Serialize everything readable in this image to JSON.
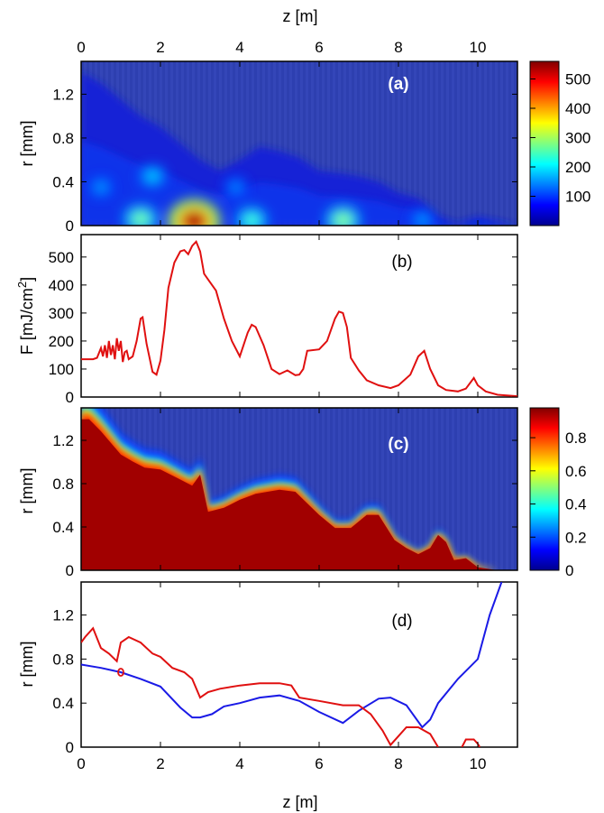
{
  "figure": {
    "top_xlabel": "z [m]",
    "bottom_xlabel": "z [m]"
  },
  "chart_data": [
    {
      "id": "a",
      "type": "heatmap",
      "panel_label": "(a)",
      "ylabel": "r [mm]",
      "xlim": [
        0,
        11
      ],
      "ylim": [
        0,
        1.5
      ],
      "xticks": [
        "0",
        "2",
        "4",
        "6",
        "8",
        "10"
      ],
      "yticks": [
        "0",
        "0.4",
        "0.8",
        "1.2"
      ],
      "colorbar": {
        "ticks": [
          "100",
          "200",
          "300",
          "400",
          "500"
        ],
        "range": [
          0,
          560
        ]
      },
      "colormap": "jet",
      "envelope_r": [
        [
          0,
          1.4
        ],
        [
          0.5,
          1.3
        ],
        [
          1,
          1.15
        ],
        [
          1.5,
          1.0
        ],
        [
          2,
          0.9
        ],
        [
          2.5,
          0.75
        ],
        [
          3,
          0.6
        ],
        [
          3.5,
          0.5
        ],
        [
          4,
          0.6
        ],
        [
          4.5,
          0.72
        ],
        [
          5,
          0.68
        ],
        [
          5.5,
          0.62
        ],
        [
          6,
          0.5
        ],
        [
          6.5,
          0.48
        ],
        [
          7,
          0.45
        ],
        [
          7.5,
          0.4
        ],
        [
          8,
          0.3
        ],
        [
          8.5,
          0.25
        ],
        [
          9,
          0.08
        ],
        [
          9.5,
          0.02
        ],
        [
          10,
          0.08
        ],
        [
          10.5,
          0.04
        ],
        [
          11,
          0
        ]
      ],
      "hotspots": [
        {
          "z": 2.85,
          "r": 0.04,
          "F": 560
        },
        {
          "z": 1.5,
          "r": 0.06,
          "F": 290
        },
        {
          "z": 4.3,
          "r": 0.05,
          "F": 260
        },
        {
          "z": 6.6,
          "r": 0.05,
          "F": 300
        },
        {
          "z": 8.6,
          "r": 0.05,
          "F": 170
        },
        {
          "z": 1.8,
          "r": 0.45,
          "F": 200
        },
        {
          "z": 0.5,
          "r": 0.35,
          "F": 170
        },
        {
          "z": 3.9,
          "r": 0.35,
          "F": 160
        }
      ]
    },
    {
      "id": "b",
      "type": "line",
      "panel_label": "(b)",
      "ylabel": "F [mJ/cm",
      "ylabel_sup": "2",
      "ylabel_end": "]",
      "xlim": [
        0,
        11
      ],
      "ylim": [
        0,
        580
      ],
      "yticks": [
        "0",
        "100",
        "200",
        "300",
        "400",
        "500"
      ],
      "series": [
        {
          "color": "#e01010",
          "x": [
            0,
            0.3,
            0.4,
            0.5,
            0.55,
            0.6,
            0.65,
            0.7,
            0.75,
            0.8,
            0.85,
            0.9,
            0.95,
            1.0,
            1.05,
            1.1,
            1.15,
            1.2,
            1.3,
            1.4,
            1.5,
            1.55,
            1.65,
            1.8,
            1.9,
            2.0,
            2.1,
            2.2,
            2.35,
            2.5,
            2.6,
            2.7,
            2.8,
            2.9,
            3.0,
            3.1,
            3.2,
            3.4,
            3.6,
            3.8,
            4.0,
            4.2,
            4.3,
            4.4,
            4.6,
            4.8,
            5.0,
            5.2,
            5.4,
            5.5,
            5.6,
            5.7,
            6.0,
            6.2,
            6.4,
            6.5,
            6.6,
            6.7,
            6.8,
            7.0,
            7.2,
            7.5,
            7.8,
            8.0,
            8.3,
            8.5,
            8.65,
            8.8,
            9.0,
            9.2,
            9.5,
            9.7,
            9.9,
            10.0,
            10.2,
            10.5,
            11.0
          ],
          "y": [
            135,
            135,
            140,
            175,
            145,
            185,
            140,
            200,
            150,
            185,
            135,
            210,
            165,
            200,
            125,
            160,
            165,
            135,
            145,
            200,
            280,
            285,
            190,
            90,
            80,
            130,
            240,
            390,
            480,
            520,
            525,
            510,
            540,
            555,
            520,
            440,
            420,
            380,
            280,
            200,
            145,
            230,
            258,
            250,
            185,
            100,
            82,
            95,
            78,
            80,
            100,
            165,
            170,
            200,
            280,
            305,
            300,
            250,
            140,
            95,
            60,
            42,
            32,
            42,
            80,
            145,
            165,
            100,
            42,
            25,
            20,
            30,
            68,
            42,
            20,
            8,
            3
          ]
        }
      ]
    },
    {
      "id": "c",
      "type": "heatmap",
      "panel_label": "(c)",
      "ylabel": "r [mm]",
      "xlim": [
        0,
        11
      ],
      "ylim": [
        0,
        1.5
      ],
      "yticks": [
        "0",
        "0.4",
        "0.8",
        "1.2"
      ],
      "colorbar": {
        "ticks": [
          "0",
          "0.2",
          "0.4",
          "0.6",
          "0.8"
        ],
        "range": [
          0,
          0.98
        ]
      },
      "colormap": "jet",
      "boundary_r": [
        [
          0,
          1.5
        ],
        [
          0.2,
          1.5
        ],
        [
          0.5,
          1.38
        ],
        [
          1,
          1.15
        ],
        [
          1.3,
          1.08
        ],
        [
          1.6,
          1.02
        ],
        [
          2,
          1.0
        ],
        [
          2.4,
          0.92
        ],
        [
          2.8,
          0.84
        ],
        [
          3,
          0.95
        ],
        [
          3.2,
          0.58
        ],
        [
          3.6,
          0.62
        ],
        [
          4,
          0.7
        ],
        [
          4.4,
          0.76
        ],
        [
          5,
          0.8
        ],
        [
          5.4,
          0.78
        ],
        [
          6,
          0.55
        ],
        [
          6.4,
          0.42
        ],
        [
          6.8,
          0.42
        ],
        [
          7.2,
          0.55
        ],
        [
          7.5,
          0.55
        ],
        [
          7.9,
          0.3
        ],
        [
          8.2,
          0.22
        ],
        [
          8.5,
          0.16
        ],
        [
          8.8,
          0.22
        ],
        [
          9,
          0.35
        ],
        [
          9.2,
          0.28
        ],
        [
          9.4,
          0.1
        ],
        [
          9.7,
          0.12
        ],
        [
          10.0,
          0.03
        ],
        [
          10.5,
          0
        ],
        [
          11,
          0
        ]
      ]
    },
    {
      "id": "d",
      "type": "line",
      "panel_label": "(d)",
      "ylabel": "r [mm]",
      "xlim": [
        0,
        11
      ],
      "ylim": [
        0,
        1.5
      ],
      "xticks": [
        "0",
        "2",
        "4",
        "6",
        "8",
        "10"
      ],
      "yticks": [
        "0",
        "0.4",
        "0.8",
        "1.2"
      ],
      "series": [
        {
          "color": "#1a1ae6",
          "x": [
            0,
            0.5,
            1.0,
            1.5,
            2.0,
            2.5,
            2.8,
            3.0,
            3.3,
            3.6,
            4.0,
            4.5,
            5.0,
            5.5,
            6.0,
            6.6,
            7.0,
            7.5,
            7.8,
            8.2,
            8.6,
            8.8,
            9.0,
            9.5,
            10.0,
            10.3,
            10.6
          ],
          "y": [
            0.75,
            0.72,
            0.68,
            0.62,
            0.55,
            0.36,
            0.27,
            0.27,
            0.3,
            0.37,
            0.4,
            0.45,
            0.47,
            0.42,
            0.32,
            0.22,
            0.33,
            0.44,
            0.45,
            0.38,
            0.18,
            0.25,
            0.4,
            0.62,
            0.8,
            1.2,
            1.5
          ]
        },
        {
          "color": "#e01010",
          "x": [
            0,
            0.1,
            0.3,
            0.5,
            0.7,
            0.9,
            1.0,
            1.2,
            1.5,
            1.8,
            2.0,
            2.3,
            2.6,
            2.8,
            3.0,
            3.2,
            3.5,
            4.0,
            4.5,
            5.0,
            5.3,
            5.5,
            6.0,
            6.6,
            7.0,
            7.3,
            7.6,
            7.8,
            8.0,
            8.2,
            8.5,
            8.8,
            9.0
          ],
          "y": [
            0.95,
            1.0,
            1.08,
            0.9,
            0.85,
            0.78,
            0.95,
            1.0,
            0.95,
            0.85,
            0.82,
            0.72,
            0.68,
            0.62,
            0.45,
            0.5,
            0.53,
            0.56,
            0.58,
            0.58,
            0.56,
            0.45,
            0.42,
            0.38,
            0.38,
            0.3,
            0.15,
            0.02,
            0.1,
            0.18,
            0.18,
            0.12,
            0.0
          ]
        },
        {
          "color": "#e01010",
          "x": [
            9.6,
            9.7,
            9.9,
            10.0,
            10.05
          ],
          "y": [
            0.0,
            0.07,
            0.07,
            0.03,
            0.0
          ]
        }
      ]
    }
  ]
}
